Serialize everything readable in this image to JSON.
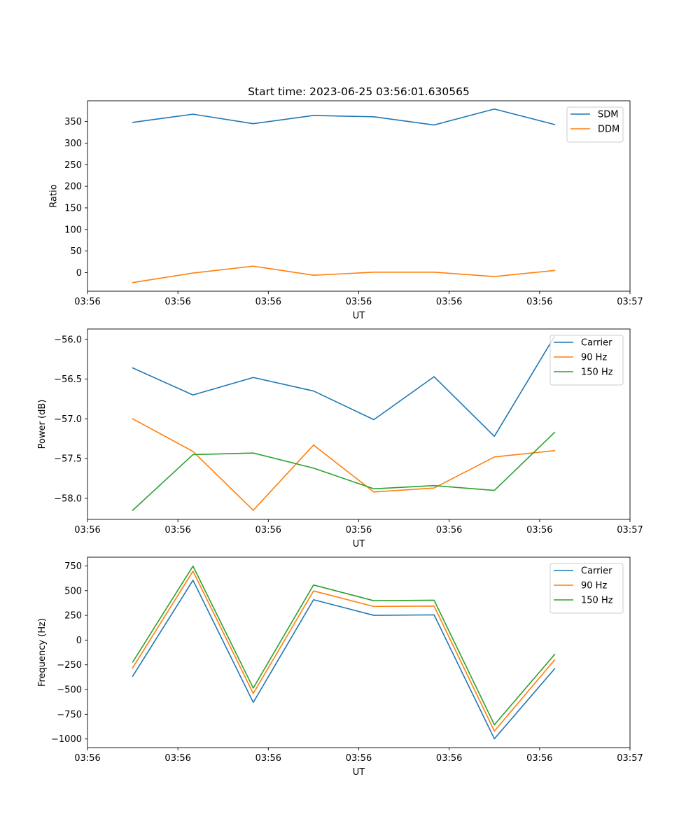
{
  "chart_data": [
    {
      "type": "line",
      "title": "Start time: 2023-06-25 03:56:01.630565",
      "xlabel": "UT",
      "ylabel": "Ratio",
      "x": [
        0,
        1,
        2,
        3,
        4,
        5,
        6,
        7
      ],
      "xlim": [
        -0.75,
        8.25
      ],
      "xticks": [
        -0.75,
        0.75,
        2.25,
        3.75,
        5.25,
        6.75,
        8.25
      ],
      "xtick_labels": [
        "03:56",
        "03:56",
        "03:56",
        "03:56",
        "03:56",
        "03:56",
        "03:57"
      ],
      "ylim": [
        -43,
        398
      ],
      "yticks": [
        0,
        50,
        100,
        150,
        200,
        250,
        300,
        350
      ],
      "ytick_labels": [
        "0",
        "50",
        "100",
        "150",
        "200",
        "250",
        "300",
        "350"
      ],
      "legend": "top-right",
      "series": [
        {
          "name": "SDM",
          "color": "#1f77b4",
          "values": [
            348,
            367,
            345,
            364,
            361,
            342,
            379,
            343
          ]
        },
        {
          "name": "DDM",
          "color": "#ff7f0e",
          "values": [
            -23,
            -1,
            15,
            -6,
            1,
            1,
            -9,
            5
          ]
        }
      ]
    },
    {
      "type": "line",
      "title": "",
      "xlabel": "UT",
      "ylabel": "Power (dB)",
      "x": [
        0,
        1,
        2,
        3,
        4,
        5,
        6,
        7
      ],
      "xlim": [
        -0.75,
        8.25
      ],
      "xticks": [
        -0.75,
        0.75,
        2.25,
        3.75,
        5.25,
        6.75,
        8.25
      ],
      "xtick_labels": [
        "03:56",
        "03:56",
        "03:56",
        "03:56",
        "03:56",
        "03:56",
        "03:57"
      ],
      "ylim": [
        -58.265,
        -55.87
      ],
      "yticks": [
        -58.0,
        -57.5,
        -57.0,
        -56.5,
        -56.0
      ],
      "ytick_labels": [
        "−58.0",
        "−57.5",
        "−57.0",
        "−56.5",
        "−56.0"
      ],
      "legend": "top-right",
      "series": [
        {
          "name": "Carrier",
          "color": "#1f77b4",
          "values": [
            -56.36,
            -56.7,
            -56.48,
            -56.65,
            -57.01,
            -56.47,
            -57.22,
            -55.96
          ]
        },
        {
          "name": "90 Hz",
          "color": "#ff7f0e",
          "values": [
            -57.0,
            -57.41,
            -58.15,
            -57.33,
            -57.92,
            -57.87,
            -57.48,
            -57.4
          ]
        },
        {
          "name": "150 Hz",
          "color": "#2ca02c",
          "values": [
            -58.15,
            -57.45,
            -57.43,
            -57.62,
            -57.88,
            -57.84,
            -57.9,
            -57.17
          ]
        }
      ]
    },
    {
      "type": "line",
      "title": "",
      "xlabel": "UT",
      "ylabel": "Frequency (Hz)",
      "x": [
        0,
        1,
        2,
        3,
        4,
        5,
        6,
        7
      ],
      "xlim": [
        -0.75,
        8.25
      ],
      "xticks": [
        -0.75,
        0.75,
        2.25,
        3.75,
        5.25,
        6.75,
        8.25
      ],
      "xtick_labels": [
        "03:56",
        "03:56",
        "03:56",
        "03:56",
        "03:56",
        "03:56",
        "03:57"
      ],
      "ylim": [
        -1087,
        838
      ],
      "yticks": [
        -1000,
        -750,
        -500,
        -250,
        0,
        250,
        500,
        750
      ],
      "ytick_labels": [
        "−1000",
        "−750",
        "−500",
        "−250",
        "0",
        "250",
        "500",
        "750"
      ],
      "legend": "top-right",
      "series": [
        {
          "name": "Carrier",
          "color": "#1f77b4",
          "values": [
            -365,
            605,
            -630,
            408,
            250,
            255,
            -998,
            -290
          ]
        },
        {
          "name": "90 Hz",
          "color": "#ff7f0e",
          "values": [
            -280,
            697,
            -540,
            497,
            340,
            344,
            -920,
            -200
          ]
        },
        {
          "name": "150 Hz",
          "color": "#2ca02c",
          "values": [
            -222,
            748,
            -485,
            557,
            398,
            403,
            -856,
            -145
          ]
        }
      ]
    }
  ]
}
